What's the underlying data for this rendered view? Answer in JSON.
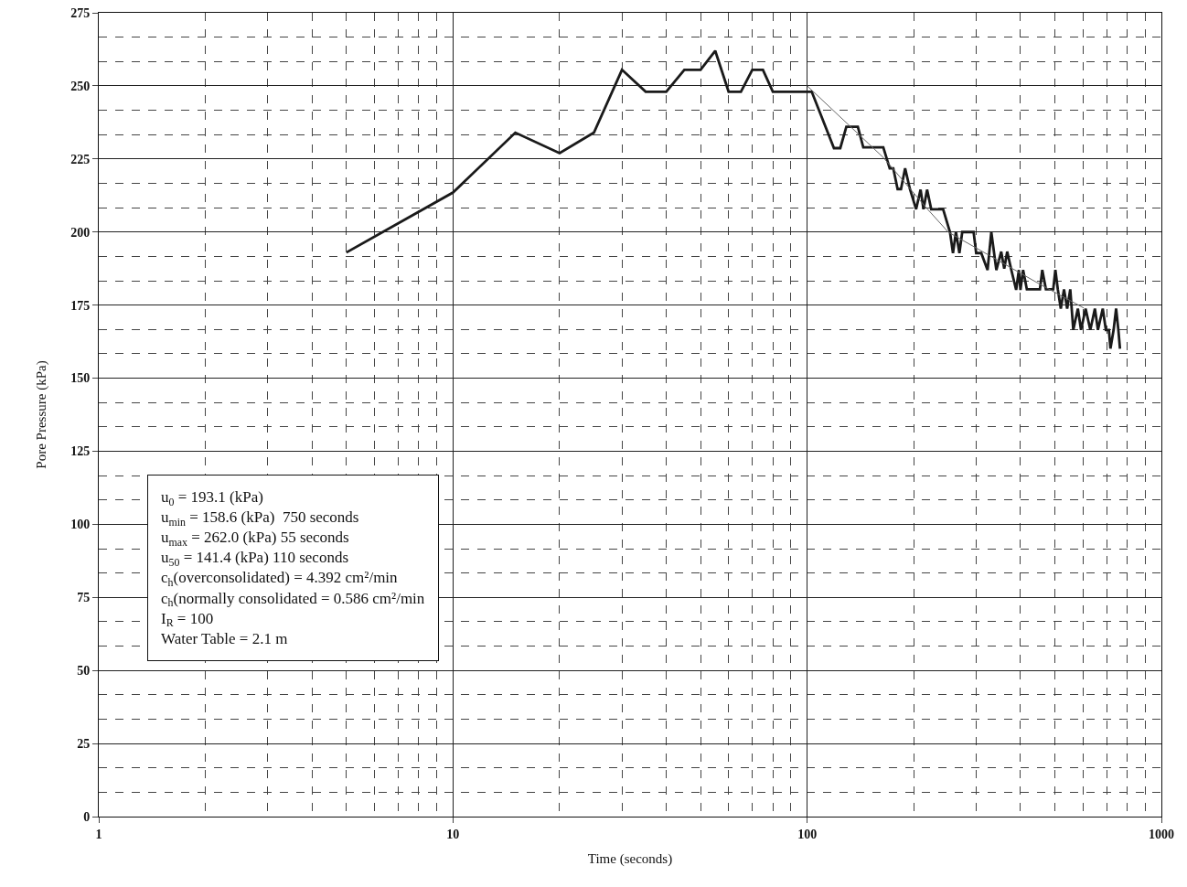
{
  "chart_data": {
    "type": "line",
    "xlabel": "Time (seconds)",
    "ylabel": "Pore Pressure (kPa)",
    "log": "x",
    "grid": true,
    "xlim": [
      1,
      1000
    ],
    "xticks": [
      1,
      10,
      100,
      1000
    ],
    "ylim": [
      0,
      275
    ],
    "yticks": [
      0,
      25,
      50,
      75,
      100,
      125,
      150,
      175,
      200,
      225,
      250,
      275
    ],
    "series": [
      {
        "color": "#1a1a1a",
        "x": [
          5,
          10,
          15,
          20,
          25,
          30,
          35,
          40,
          45,
          50,
          55,
          60,
          65,
          70,
          75,
          80,
          100,
          103,
          119,
          124,
          129,
          139,
          144,
          164,
          171,
          175,
          180,
          184,
          189,
          195,
          203,
          209,
          213,
          218,
          224,
          242,
          253,
          258,
          263,
          269,
          274,
          295,
          300,
          310,
          323,
          331,
          342,
          353,
          360,
          367,
          377,
          389,
          396,
          400,
          407,
          417,
          454,
          461,
          472,
          495,
          502,
          510,
          520,
          531,
          542,
          553,
          564,
          581,
          593,
          611,
          630,
          649,
          662,
          683,
          697,
          711,
          718,
          733,
          745,
          756,
          764
        ],
        "values": [
          193,
          213.5,
          234,
          227,
          234,
          255.5,
          248,
          248,
          255.5,
          255.5,
          262,
          248,
          248,
          255.5,
          255.5,
          248,
          248,
          248,
          228.7,
          228.7,
          236,
          236,
          229,
          229,
          221.8,
          221.8,
          214.7,
          214.7,
          221.8,
          214.7,
          207.8,
          214.5,
          207.8,
          214.5,
          207.8,
          207.8,
          200,
          192.8,
          200,
          192.8,
          200,
          200,
          192.8,
          192.8,
          187,
          200,
          187,
          193.3,
          187.5,
          193.3,
          187,
          180.2,
          187,
          180.2,
          187,
          180.4,
          180.4,
          187,
          180.4,
          180.4,
          187,
          180.4,
          173.8,
          180.4,
          173.8,
          180.4,
          166.5,
          173.8,
          166.5,
          173.8,
          166.5,
          173.8,
          166.5,
          173.8,
          166.5,
          166.5,
          160.1,
          166.5,
          173.8,
          166.5,
          160.1
        ]
      },
      {
        "type": "line",
        "color": "#666666",
        "x": [
          100,
          164,
          218,
          250,
          456,
          604
        ],
        "values": [
          250,
          225.5,
          208,
          200,
          182,
          174
        ]
      }
    ],
    "annotations": [
      "u$_{0}$ = 193.1 (kPa)",
      "u$_{min}$ = 158.6 (kPa)  750 seconds",
      "u$_{max}$ = 262.0 (kPa) 55 seconds",
      "u$_{50}$ = 141.4 (kPa) 110 seconds",
      "c$_{h}$(overconsolidated) = 4.392 cm²/min",
      "c$_{h}$(normally consolidated = 0.586 cm²/min",
      "I$_{R}$ = 100",
      "Water Table = 2.1 m"
    ]
  }
}
